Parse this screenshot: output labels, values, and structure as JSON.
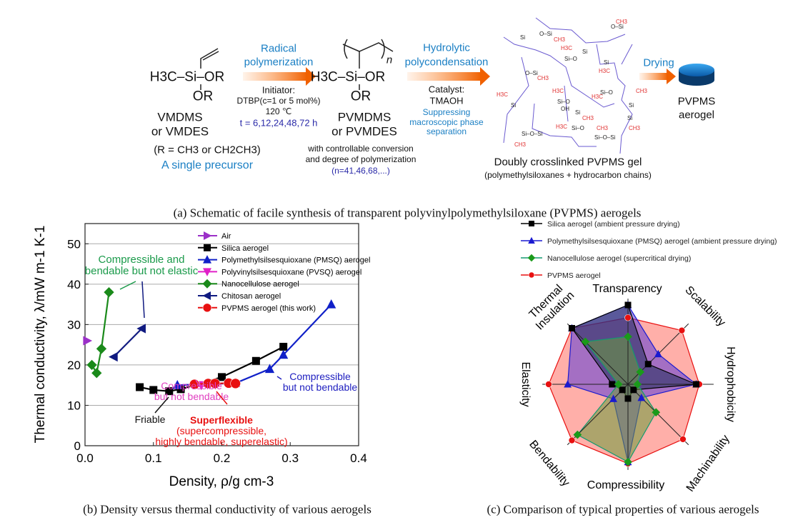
{
  "schematic": {
    "precursor_formula": "H3C–Si–OR",
    "precursor_or": "OR",
    "precursor_name1": "VMDMS",
    "precursor_name2": "or VMDES",
    "r_def": "(R = CH3 or CH2CH3)",
    "single_precursor": "A single precursor",
    "step1_title1": "Radical",
    "step1_title2": "polymerization",
    "step1_initiator": "Initiator:",
    "step1_dtbp": "DTBP(c=1 or 5 mol%)",
    "step1_temp": "120 ℃",
    "step1_time": "t = 6,12,24,48,72 h",
    "polymer_formula": "H3C–Si–OR",
    "polymer_or": "OR",
    "polymer_n": "n",
    "polymer_name1": "PVMDMS",
    "polymer_name2": "or PVMDES",
    "polymer_note1": "with controllable conversion",
    "polymer_note2": "and degree of polymerization",
    "polymer_note3": "(n=41,46,68,...)",
    "step2_title1": "Hydrolytic",
    "step2_title2": "polycondensation",
    "step2_catalyst": "Catalyst:",
    "step2_tmaoh": "TMAOH",
    "step2_note1": "Suppressing",
    "step2_note2": "macroscopic phase",
    "step2_note3": "separation",
    "gel_title": "Doubly crosslinked PVPMS gel",
    "gel_subtitle": "(polymethylsiloxanes + hydrocarbon chains)",
    "step3_title": "Drying",
    "product1": "PVPMS",
    "product2": "aerogel",
    "caption": "(a) Schematic of facile synthesis of transparent polyvinylpolymethylsiloxane (PVPMS) aerogels"
  },
  "captions": {
    "b": "(b)    Density versus thermal conductivity of various aerogels",
    "c": "(c) Comparison of typical properties of various aerogels"
  },
  "chart_data": [
    {
      "type": "line",
      "xlabel": "Density, ρ/g cm-3",
      "ylabel": "Thermal conductivity, λ/mW m-1 K-1",
      "xlim": [
        0,
        0.4
      ],
      "ylim": [
        0,
        55
      ],
      "xticks": [
        "0.0",
        "0.1",
        "0.2",
        "0.3",
        "0.4"
      ],
      "yticks": [
        "0",
        "10",
        "20",
        "30",
        "40",
        "50"
      ],
      "grid": "horizontal",
      "legend_position": "top-right",
      "series": [
        {
          "name": "Air",
          "color": "#9b30c8",
          "marker": "triangle-right",
          "points": [
            [
              0.003,
              26
            ]
          ]
        },
        {
          "name": "Silica aerogel",
          "color": "#000000",
          "marker": "square",
          "points": [
            [
              0.08,
              14.5
            ],
            [
              0.1,
              13.8
            ],
            [
              0.123,
              13.5
            ],
            [
              0.14,
              14
            ],
            [
              0.2,
              17
            ],
            [
              0.25,
              21
            ],
            [
              0.29,
              24.5
            ]
          ]
        },
        {
          "name": "Polymethylsilsesquioxane (PMSQ) aerogel",
          "color": "#1020c8",
          "marker": "triangle-up",
          "points": [
            [
              0.135,
              15
            ],
            [
              0.22,
              15.5
            ],
            [
              0.27,
              19
            ],
            [
              0.29,
              22.5
            ],
            [
              0.36,
              35
            ]
          ]
        },
        {
          "name": "Polyvinylsilsesquioxane (PVSQ) aerogel",
          "color": "#e020c8",
          "marker": "triangle-down",
          "points": [
            [
              0.17,
              15
            ]
          ]
        },
        {
          "name": "Nanocellulose aerogel",
          "color": "#1a8a1a",
          "marker": "diamond",
          "points": [
            [
              0.01,
              20
            ],
            [
              0.017,
              18
            ],
            [
              0.024,
              24
            ],
            [
              0.035,
              38
            ]
          ]
        },
        {
          "name": "Chitosan aerogel",
          "color": "#101a80",
          "marker": "triangle-left",
          "points": [
            [
              0.042,
              22
            ],
            [
              0.083,
              29
            ]
          ]
        },
        {
          "name": "PVPMS aerogel (this work)",
          "color": "#e81010",
          "marker": "circle",
          "points": [
            [
              0.16,
              15.2
            ],
            [
              0.18,
              15.4
            ],
            [
              0.19,
              15.4
            ],
            [
              0.21,
              15.5
            ],
            [
              0.22,
              15.4
            ]
          ]
        }
      ],
      "annotations": [
        {
          "text": [
            "Compressible and",
            "bendable but not elastic"
          ],
          "color": "#1a9a4a"
        },
        {
          "text": [
            "Compressible",
            "but not bendable"
          ],
          "color": "#e040c0"
        },
        {
          "text": [
            "Compressible",
            "but not bendable"
          ],
          "color": "#2020c0"
        },
        {
          "text": [
            "Friable"
          ],
          "color": "#111111"
        },
        {
          "text": [
            "Superflexible",
            "(supercompressible,",
            "highly bendable, superelastic)"
          ],
          "color": "#e81010"
        }
      ]
    },
    {
      "type": "radar",
      "axes": [
        "Transparency",
        "Scalability",
        "Hydrophobicity",
        "Machinability",
        "Compressibility",
        "Bendability",
        "Elasticity",
        "Thermal Insulation"
      ],
      "rlim": [
        0,
        5
      ],
      "legend_position": "top",
      "series": [
        {
          "name": "Silica aerogel (ambient pressure drying)",
          "color": "#000000",
          "fill": "#1e2a5a",
          "marker": "square",
          "values": [
            5,
            1.8,
            4.3,
            0.5,
            0.9,
            0.5,
            1,
            5
          ]
        },
        {
          "name": "Polymethylsilsesquioxane (PMSQ) aerogel (ambient pressure drying)",
          "color": "#1a1ad0",
          "fill": "#5a3ad8",
          "marker": "triangle",
          "values": [
            5,
            2.7,
            4.3,
            1.2,
            4.9,
            1.3,
            3.8,
            5
          ]
        },
        {
          "name": "Nanocellulose aerogel (supercritical drying)",
          "color": "#139a70",
          "fill": "#6a9a3a",
          "marker": "diamond",
          "values": [
            3.0,
            1.1,
            0.6,
            2.5,
            4.9,
            4.5,
            0.6,
            3.8
          ]
        },
        {
          "name": "PVPMS aerogel",
          "color": "#e81010",
          "fill": "#ff7a70",
          "marker": "circle",
          "values": [
            4.2,
            4.8,
            4.5,
            4.9,
            5,
            5,
            5,
            5
          ]
        }
      ]
    }
  ]
}
